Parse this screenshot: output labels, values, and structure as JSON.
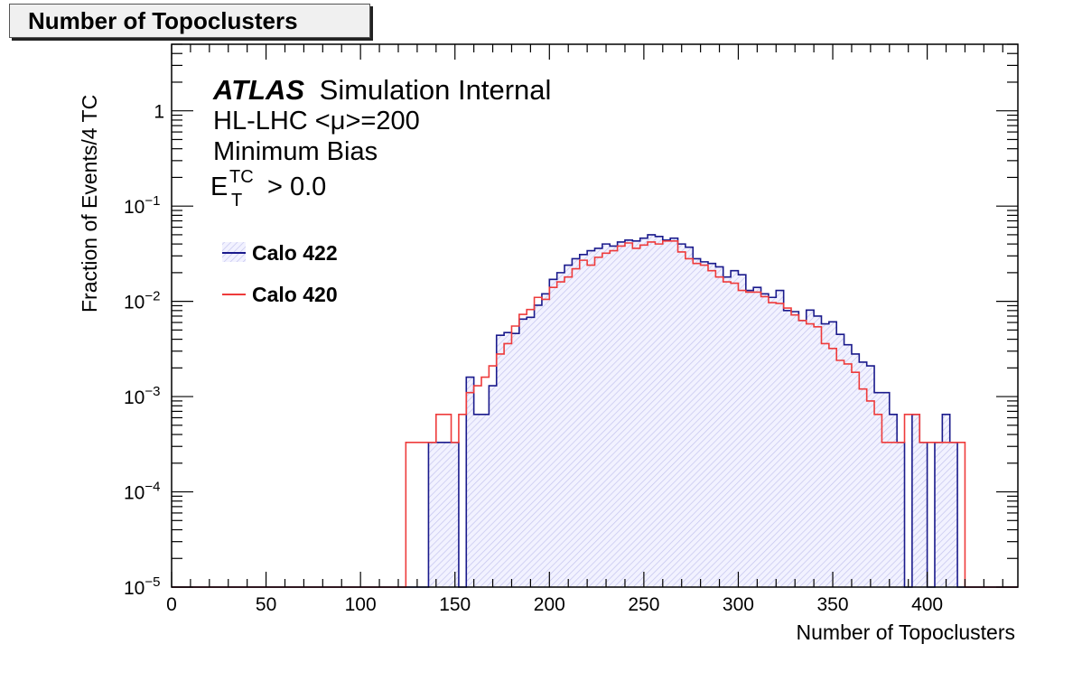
{
  "title_box": "Number of Topoclusters",
  "chart_data": {
    "type": "histogram",
    "title": "Number of Topoclusters",
    "xlabel": "Number of Topoclusters",
    "ylabel": "Fraction of Events/4 TC",
    "xlim": [
      0,
      448
    ],
    "ylim": [
      1e-05,
      5
    ],
    "y_scale": "log",
    "bin_width": 4,
    "x_ticks": [
      0,
      50,
      100,
      150,
      200,
      250,
      300,
      350,
      400
    ],
    "x_tick_labels": [
      "0",
      "50",
      "100",
      "150",
      "200",
      "250",
      "300",
      "350",
      "400"
    ],
    "y_ticks": [
      {
        "value": 1,
        "base": "1",
        "exp": ""
      },
      {
        "value": 0.1,
        "base": "10",
        "exp": "−1"
      },
      {
        "value": 0.01,
        "base": "10",
        "exp": "−2"
      },
      {
        "value": 0.001,
        "base": "10",
        "exp": "−3"
      },
      {
        "value": 0.0001,
        "base": "10",
        "exp": "−4"
      },
      {
        "value": 1e-05,
        "base": "10",
        "exp": "−5"
      }
    ],
    "annotations": {
      "atlas": "ATLAS",
      "atlas_suffix": "Simulation Internal",
      "line2": "HL-LHC <μ>=200",
      "line3": "Minimum Bias",
      "cut_symbol": "E",
      "cut_sup": "TC",
      "cut_sub": "T",
      "cut_value": "> 0.0"
    },
    "legend_position": "top-left",
    "series": [
      {
        "name": "Calo 422",
        "color": "#1a1a8c",
        "fill": "hatched",
        "bins": [
          [
            136,
            0.00033
          ],
          [
            140,
            0.00033
          ],
          [
            144,
            0.00033
          ],
          [
            148,
            0.00033
          ],
          [
            152,
            1e-05
          ],
          [
            156,
            0.0016
          ],
          [
            160,
            0.00065
          ],
          [
            164,
            0.00065
          ],
          [
            168,
            0.0013
          ],
          [
            172,
            0.0044
          ],
          [
            176,
            0.0047
          ],
          [
            180,
            0.0046
          ],
          [
            184,
            0.0065
          ],
          [
            188,
            0.0068
          ],
          [
            192,
            0.0091
          ],
          [
            196,
            0.012
          ],
          [
            200,
            0.017
          ],
          [
            204,
            0.02
          ],
          [
            208,
            0.024
          ],
          [
            212,
            0.028
          ],
          [
            216,
            0.031
          ],
          [
            220,
            0.034
          ],
          [
            224,
            0.036
          ],
          [
            228,
            0.04
          ],
          [
            232,
            0.038
          ],
          [
            236,
            0.042
          ],
          [
            240,
            0.044
          ],
          [
            244,
            0.043
          ],
          [
            248,
            0.046
          ],
          [
            252,
            0.05
          ],
          [
            256,
            0.048
          ],
          [
            260,
            0.044
          ],
          [
            264,
            0.046
          ],
          [
            268,
            0.04
          ],
          [
            272,
            0.037
          ],
          [
            276,
            0.028
          ],
          [
            280,
            0.026
          ],
          [
            284,
            0.025
          ],
          [
            288,
            0.023
          ],
          [
            292,
            0.018
          ],
          [
            296,
            0.021
          ],
          [
            300,
            0.019
          ],
          [
            304,
            0.013
          ],
          [
            308,
            0.014
          ],
          [
            312,
            0.012
          ],
          [
            316,
            0.011
          ],
          [
            320,
            0.013
          ],
          [
            324,
            0.008
          ],
          [
            328,
            0.0078
          ],
          [
            332,
            0.0063
          ],
          [
            336,
            0.0081
          ],
          [
            340,
            0.007
          ],
          [
            344,
            0.0058
          ],
          [
            348,
            0.0061
          ],
          [
            352,
            0.0045
          ],
          [
            356,
            0.0035
          ],
          [
            360,
            0.0028
          ],
          [
            364,
            0.0023
          ],
          [
            368,
            0.0021
          ],
          [
            372,
            0.0011
          ],
          [
            376,
            0.0011
          ],
          [
            380,
            0.00065
          ],
          [
            384,
            0.00033
          ],
          [
            388,
            1e-05
          ],
          [
            392,
            0.00065
          ],
          [
            396,
            0.00033
          ],
          [
            400,
            1e-05
          ],
          [
            404,
            0.00033
          ],
          [
            408,
            0.00065
          ],
          [
            412,
            0.00033
          ]
        ]
      },
      {
        "name": "Calo 420",
        "color": "#ee3b3b",
        "fill": "none",
        "bins": [
          [
            124,
            0.00033
          ],
          [
            128,
            0.00033
          ],
          [
            132,
            0.00033
          ],
          [
            136,
            0.00033
          ],
          [
            140,
            0.00065
          ],
          [
            144,
            0.00065
          ],
          [
            148,
            0.00033
          ],
          [
            152,
            0.00065
          ],
          [
            156,
            0.0011
          ],
          [
            160,
            0.0013
          ],
          [
            164,
            0.0016
          ],
          [
            168,
            0.0021
          ],
          [
            172,
            0.0028
          ],
          [
            176,
            0.0036
          ],
          [
            180,
            0.0055
          ],
          [
            184,
            0.0073
          ],
          [
            188,
            0.0082
          ],
          [
            192,
            0.011
          ],
          [
            196,
            0.0105
          ],
          [
            200,
            0.014
          ],
          [
            204,
            0.016
          ],
          [
            208,
            0.018
          ],
          [
            212,
            0.022
          ],
          [
            216,
            0.027
          ],
          [
            220,
            0.024
          ],
          [
            224,
            0.029
          ],
          [
            228,
            0.032
          ],
          [
            232,
            0.034
          ],
          [
            236,
            0.038
          ],
          [
            240,
            0.041
          ],
          [
            244,
            0.036
          ],
          [
            248,
            0.039
          ],
          [
            252,
            0.042
          ],
          [
            256,
            0.04
          ],
          [
            260,
            0.043
          ],
          [
            264,
            0.043
          ],
          [
            268,
            0.033
          ],
          [
            272,
            0.028
          ],
          [
            276,
            0.025
          ],
          [
            280,
            0.024
          ],
          [
            284,
            0.021
          ],
          [
            288,
            0.018
          ],
          [
            292,
            0.016
          ],
          [
            296,
            0.0155
          ],
          [
            300,
            0.013
          ],
          [
            304,
            0.0125
          ],
          [
            308,
            0.0125
          ],
          [
            312,
            0.0112
          ],
          [
            316,
            0.0097
          ],
          [
            320,
            0.0095
          ],
          [
            324,
            0.0085
          ],
          [
            328,
            0.0072
          ],
          [
            332,
            0.0063
          ],
          [
            336,
            0.0058
          ],
          [
            340,
            0.0054
          ],
          [
            344,
            0.0036
          ],
          [
            348,
            0.0032
          ],
          [
            352,
            0.0024
          ],
          [
            356,
            0.0022
          ],
          [
            360,
            0.0018
          ],
          [
            364,
            0.0012
          ],
          [
            368,
            0.0009
          ],
          [
            372,
            0.00065
          ],
          [
            376,
            0.00033
          ],
          [
            380,
            0.00033
          ],
          [
            384,
            0.00033
          ],
          [
            388,
            0.00065
          ],
          [
            392,
            0.00065
          ],
          [
            396,
            0.00033
          ],
          [
            400,
            0.00033
          ],
          [
            404,
            0.00033
          ],
          [
            408,
            0.00033
          ],
          [
            412,
            0.00033
          ],
          [
            416,
            0.00033
          ]
        ]
      }
    ]
  }
}
